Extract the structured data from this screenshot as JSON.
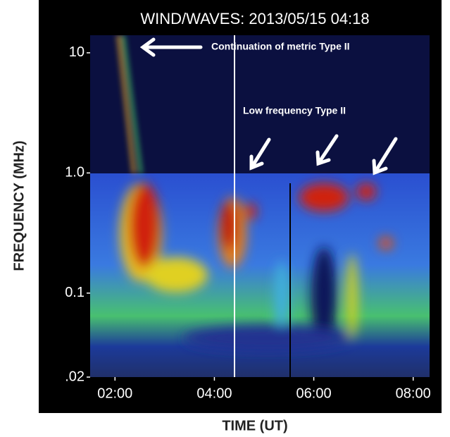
{
  "chart_data": {
    "type": "spectrogram",
    "title": "WIND/WAVES: 2013/05/15 04:18",
    "x_label": "TIME (UT)",
    "y_label": "FREQUENCY (MHz)",
    "log_y": true,
    "xlim": [
      1.5,
      8.33
    ],
    "xticks": [
      {
        "value": 2,
        "label": "02:00"
      },
      {
        "value": 4,
        "label": "04:00"
      },
      {
        "value": 6,
        "label": "06:00"
      },
      {
        "value": 8,
        "label": "08:00"
      }
    ],
    "ylim": [
      0.02,
      14
    ],
    "yticks": [
      {
        "value": 0.02,
        "label": ".02"
      },
      0.1,
      {
        "value": 1,
        "label": "1.0"
      },
      10
    ],
    "annotations": [
      "Continuation of metric Type II",
      "Low frequency Type II"
    ]
  }
}
